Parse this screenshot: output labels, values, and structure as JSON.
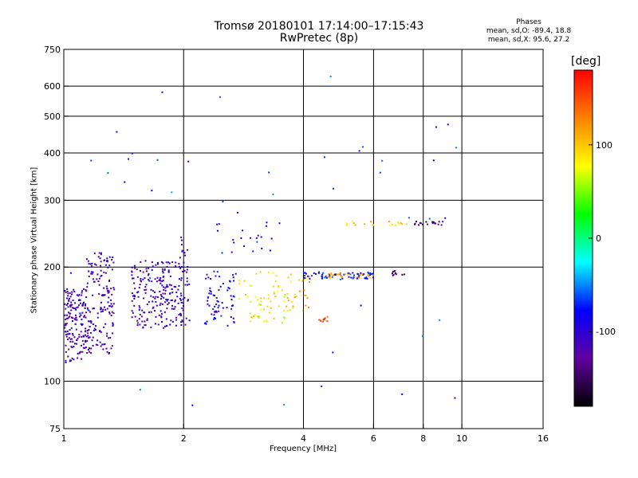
{
  "chart_data": {
    "type": "scatter",
    "title": "Tromsø 20180101 17:14:00–17:15:43",
    "subtitle": "RwPretec (8p)",
    "xlabel": "Frequency [MHz]",
    "ylabel": "Stationary phase Virtual Height [km]",
    "x_scale": "log",
    "y_scale": "log",
    "xlim": [
      1,
      16
    ],
    "ylim": [
      75,
      750
    ],
    "x_ticks": [
      "1",
      "2",
      "4",
      "6",
      "8",
      "10",
      "16"
    ],
    "x_gridlines": [
      2,
      4,
      6,
      8,
      10
    ],
    "y_ticks": [
      "75",
      "100",
      "200",
      "300",
      "400",
      "500",
      "600",
      "750"
    ],
    "y_gridlines": [
      100,
      200,
      300,
      400,
      500,
      600
    ],
    "phase_stats": {
      "heading": "Phases",
      "o_line": "mean, sd,O: -89.4, 18.8",
      "x_line": "mean, sd,X:  95.6, 27.2"
    },
    "colorbar": {
      "unit": "[deg]",
      "range": [
        -180,
        180
      ],
      "ticks": [
        "100",
        "0",
        "-100"
      ],
      "colors": [
        "#ff0000",
        "#ff8000",
        "#ffff00",
        "#00ff00",
        "#00ffff",
        "#0000ff",
        "#6000a0",
        "#000000"
      ]
    },
    "series": [
      {
        "clusters": [
          {
            "fmin": 1.0,
            "fmax": 1.14,
            "hmin": 112,
            "hmax": 175,
            "n": 170,
            "phase": -115
          },
          {
            "fmin": 1.14,
            "fmax": 1.34,
            "hmin": 118,
            "hmax": 218,
            "n": 160,
            "phase": -115
          },
          {
            "fmin": 1.48,
            "fmax": 1.98,
            "hmin": 138,
            "hmax": 208,
            "n": 210,
            "phase": -110
          },
          {
            "fmin": 1.96,
            "fmax": 2.08,
            "hmin": 140,
            "hmax": 240,
            "n": 40,
            "phase": -108
          },
          {
            "fmin": 2.25,
            "fmax": 2.75,
            "hmin": 140,
            "hmax": 196,
            "n": 70,
            "phase": -90
          },
          {
            "fmin": 2.75,
            "fmax": 3.6,
            "hmin": 142,
            "hmax": 196,
            "n": 60,
            "phase": 80
          },
          {
            "fmin": 3.6,
            "fmax": 4.2,
            "hmin": 148,
            "hmax": 195,
            "n": 30,
            "phase": 100
          },
          {
            "fmin": 4.0,
            "fmax": 6.0,
            "hmin": 186,
            "hmax": 194,
            "n": 65,
            "phase": -80
          },
          {
            "fmin": 4.6,
            "fmax": 6.0,
            "hmin": 187,
            "hmax": 193,
            "n": 25,
            "phase": 110
          },
          {
            "fmin": 4.35,
            "fmax": 4.6,
            "hmin": 142,
            "hmax": 148,
            "n": 10,
            "phase": 150
          },
          {
            "fmin": 6.5,
            "fmax": 7.2,
            "hmin": 190,
            "hmax": 196,
            "n": 10,
            "phase": -150
          },
          {
            "fmin": 7.6,
            "fmax": 9.4,
            "hmin": 258,
            "hmax": 264,
            "n": 18,
            "phase": -150
          },
          {
            "fmin": 4.9,
            "fmax": 7.5,
            "hmin": 257,
            "hmax": 265,
            "n": 18,
            "phase": 95
          },
          {
            "fmin": 2.4,
            "fmax": 3.6,
            "hmin": 215,
            "hmax": 265,
            "n": 22,
            "phase": -85
          },
          {
            "fmin": 1.0,
            "fmax": 10.5,
            "hmin": 80,
            "hmax": 650,
            "n": 45,
            "phase": -70
          }
        ]
      }
    ]
  }
}
